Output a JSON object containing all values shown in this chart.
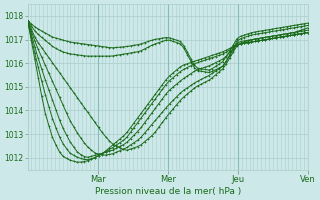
{
  "xlabel": "Pression niveau de la mer( hPa )",
  "bg_color": "#cce8e8",
  "grid_color": "#aacccc",
  "line_color": "#1a6b1a",
  "ylim": [
    1011.5,
    1018.5
  ],
  "yticks": [
    1012,
    1013,
    1014,
    1015,
    1016,
    1017,
    1018
  ],
  "day_labels": [
    "Mar",
    "Mer",
    "Jeu",
    "Ven"
  ],
  "day_positions": [
    0.25,
    0.5,
    0.75,
    1.0
  ],
  "xlim": [
    0,
    1.0
  ],
  "series": [
    {
      "x": [
        0.0,
        0.03,
        0.06,
        0.09,
        0.12,
        0.15,
        0.18,
        0.21,
        0.24,
        0.27,
        0.3,
        0.35,
        0.4,
        0.45,
        0.5,
        0.55,
        0.6,
        0.65,
        0.7,
        0.75,
        0.8,
        0.85,
        0.9,
        0.95,
        1.0
      ],
      "y": [
        1017.8,
        1017.5,
        1017.3,
        1017.1,
        1017.0,
        1016.9,
        1016.85,
        1016.8,
        1016.75,
        1016.7,
        1016.65,
        1016.7,
        1016.8,
        1017.0,
        1017.1,
        1016.9,
        1015.8,
        1015.7,
        1016.1,
        1017.1,
        1017.3,
        1017.4,
        1017.5,
        1017.6,
        1017.7
      ]
    },
    {
      "x": [
        0.0,
        0.03,
        0.06,
        0.09,
        0.12,
        0.15,
        0.18,
        0.21,
        0.24,
        0.27,
        0.3,
        0.35,
        0.4,
        0.45,
        0.5,
        0.55,
        0.6,
        0.65,
        0.7,
        0.75,
        0.8,
        0.85,
        0.9,
        0.95,
        1.0
      ],
      "y": [
        1017.8,
        1017.3,
        1017.0,
        1016.7,
        1016.5,
        1016.4,
        1016.35,
        1016.3,
        1016.3,
        1016.3,
        1016.3,
        1016.4,
        1016.5,
        1016.8,
        1017.0,
        1016.8,
        1015.7,
        1015.6,
        1015.9,
        1017.0,
        1017.2,
        1017.3,
        1017.4,
        1017.5,
        1017.6
      ]
    },
    {
      "x": [
        0.0,
        0.03,
        0.06,
        0.09,
        0.12,
        0.15,
        0.18,
        0.21,
        0.24,
        0.27,
        0.3,
        0.35,
        0.4,
        0.45,
        0.5,
        0.55,
        0.6,
        0.65,
        0.7,
        0.75,
        0.8,
        0.85,
        0.9,
        0.95,
        1.0
      ],
      "y": [
        1017.8,
        1017.0,
        1016.5,
        1016.0,
        1015.5,
        1015.0,
        1014.5,
        1014.0,
        1013.5,
        1013.0,
        1012.6,
        1012.3,
        1012.5,
        1013.0,
        1013.8,
        1014.5,
        1015.0,
        1015.3,
        1015.8,
        1016.8,
        1017.0,
        1017.1,
        1017.2,
        1017.3,
        1017.5
      ]
    },
    {
      "x": [
        0.0,
        0.03,
        0.06,
        0.09,
        0.12,
        0.15,
        0.18,
        0.21,
        0.24,
        0.27,
        0.3,
        0.35,
        0.4,
        0.45,
        0.5,
        0.55,
        0.6,
        0.65,
        0.7,
        0.75,
        0.8,
        0.85,
        0.9,
        0.95,
        1.0
      ],
      "y": [
        1017.8,
        1016.8,
        1016.0,
        1015.2,
        1014.4,
        1013.6,
        1013.0,
        1012.5,
        1012.2,
        1012.1,
        1012.15,
        1012.4,
        1012.8,
        1013.5,
        1014.2,
        1014.8,
        1015.2,
        1015.5,
        1015.9,
        1016.9,
        1017.0,
        1017.1,
        1017.2,
        1017.3,
        1017.4
      ]
    },
    {
      "x": [
        0.0,
        0.03,
        0.06,
        0.09,
        0.12,
        0.15,
        0.18,
        0.21,
        0.24,
        0.27,
        0.3,
        0.35,
        0.4,
        0.45,
        0.5,
        0.55,
        0.6,
        0.65,
        0.7,
        0.75,
        0.8,
        0.85,
        0.9,
        0.95,
        1.0
      ],
      "y": [
        1017.8,
        1016.5,
        1015.4,
        1014.4,
        1013.4,
        1012.7,
        1012.2,
        1012.0,
        1012.1,
        1012.2,
        1012.3,
        1012.6,
        1013.2,
        1014.0,
        1014.8,
        1015.3,
        1015.7,
        1015.9,
        1016.2,
        1016.8,
        1016.9,
        1017.0,
        1017.1,
        1017.2,
        1017.3
      ]
    },
    {
      "x": [
        0.0,
        0.03,
        0.06,
        0.09,
        0.12,
        0.15,
        0.18,
        0.21,
        0.24,
        0.27,
        0.3,
        0.35,
        0.4,
        0.45,
        0.5,
        0.55,
        0.6,
        0.65,
        0.7,
        0.75,
        0.8,
        0.85,
        0.9,
        0.95,
        1.0
      ],
      "y": [
        1017.8,
        1016.2,
        1014.8,
        1013.6,
        1012.7,
        1012.2,
        1012.0,
        1011.9,
        1012.0,
        1012.2,
        1012.4,
        1012.8,
        1013.6,
        1014.4,
        1015.2,
        1015.7,
        1016.0,
        1016.2,
        1016.4,
        1016.8,
        1016.9,
        1017.0,
        1017.1,
        1017.2,
        1017.3
      ]
    },
    {
      "x": [
        0.0,
        0.03,
        0.06,
        0.09,
        0.12,
        0.15,
        0.18,
        0.21,
        0.24,
        0.27,
        0.3,
        0.35,
        0.4,
        0.45,
        0.5,
        0.55,
        0.6,
        0.65,
        0.7,
        0.75,
        0.8,
        0.85,
        0.9,
        0.95,
        1.0
      ],
      "y": [
        1017.8,
        1015.9,
        1014.0,
        1012.8,
        1012.1,
        1011.9,
        1011.8,
        1011.85,
        1012.0,
        1012.2,
        1012.5,
        1013.0,
        1013.8,
        1014.6,
        1015.4,
        1015.9,
        1016.1,
        1016.3,
        1016.5,
        1016.8,
        1016.9,
        1017.0,
        1017.1,
        1017.2,
        1017.3
      ]
    }
  ]
}
